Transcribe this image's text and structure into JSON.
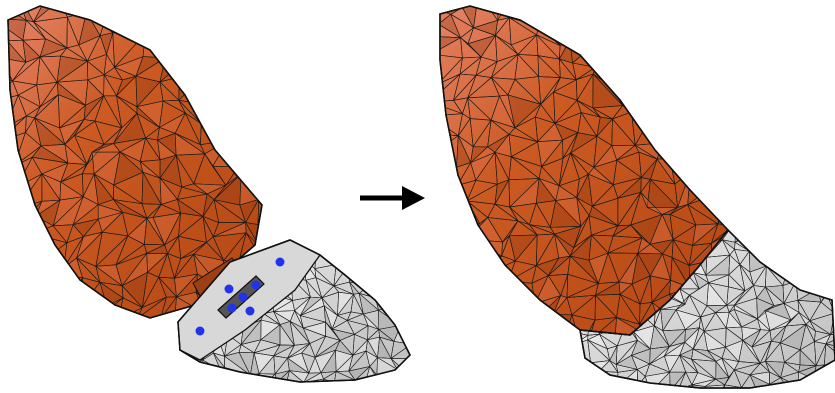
{
  "figure": {
    "panels": [
      {
        "id": "before",
        "description_visible": false
      },
      {
        "id": "after",
        "description_visible": false
      }
    ],
    "arrow": {
      "direction": "right"
    },
    "colors": {
      "orange_mesh": "#c9581f",
      "orange_light": "#e0724a",
      "orange_dark": "#8f3a12",
      "gray_mesh": "#cfcfcf",
      "gray_light": "#e9e9e9",
      "connector_dark": "#6e2c0d",
      "marker_blue": "#2233ee",
      "edge": "#111111",
      "arrow": "#000000"
    },
    "markers": {
      "count": 7
    }
  }
}
